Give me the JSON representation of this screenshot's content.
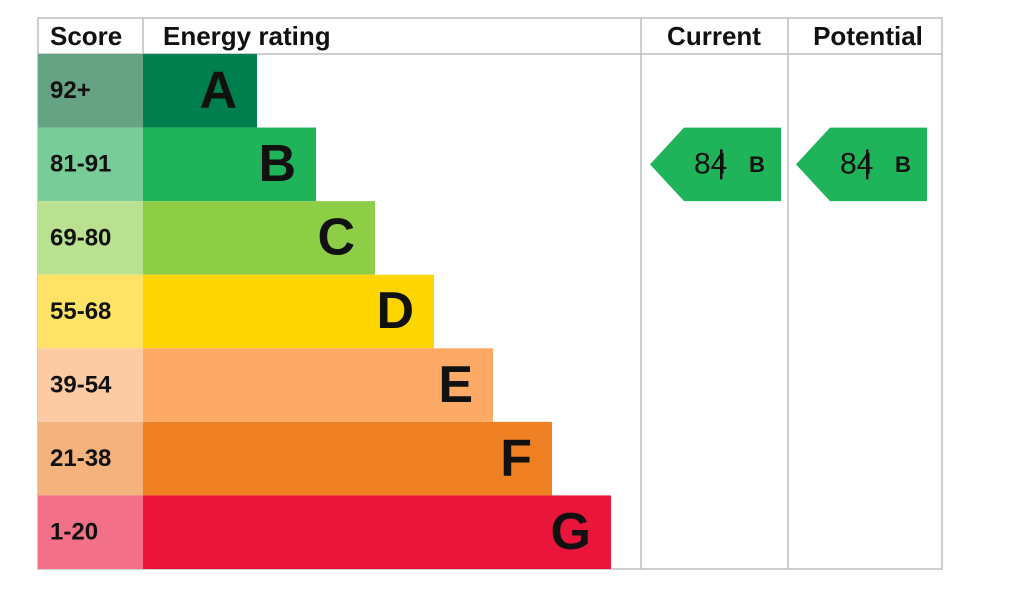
{
  "header": {
    "score": "Score",
    "energy_rating": "Energy rating",
    "current": "Current",
    "potential": "Potential"
  },
  "rows": [
    {
      "score": "92+",
      "letter": "A"
    },
    {
      "score": "81-91",
      "letter": "B"
    },
    {
      "score": "69-80",
      "letter": "C"
    },
    {
      "score": "55-68",
      "letter": "D"
    },
    {
      "score": "39-54",
      "letter": "E"
    },
    {
      "score": "21-38",
      "letter": "F"
    },
    {
      "score": "1-20",
      "letter": "G"
    }
  ],
  "current": {
    "value": 84,
    "letter": "B"
  },
  "potential": {
    "value": 84,
    "letter": "B"
  }
}
